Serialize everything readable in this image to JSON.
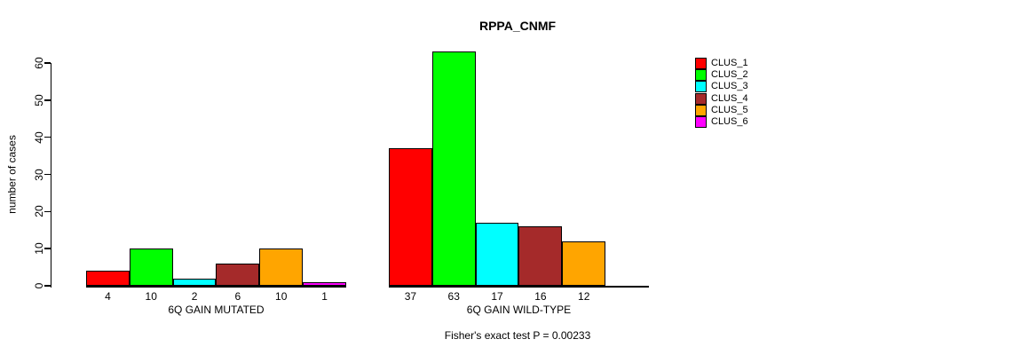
{
  "chart_data": {
    "type": "bar",
    "title": "RPPA_CNMF",
    "ylabel": "number of cases",
    "ylim": [
      0,
      60
    ],
    "yticks": [
      0,
      10,
      20,
      30,
      40,
      50,
      60
    ],
    "grid": false,
    "legend_position": "top-right",
    "annotation": "Fisher's exact test P = 0.00233",
    "series": [
      {
        "name": "CLUS_1",
        "color": "#FF0000"
      },
      {
        "name": "CLUS_2",
        "color": "#00FF00"
      },
      {
        "name": "CLUS_3",
        "color": "#00FFFF"
      },
      {
        "name": "CLUS_4",
        "color": "#A52A2A"
      },
      {
        "name": "CLUS_5",
        "color": "#FFA500"
      },
      {
        "name": "CLUS_6",
        "color": "#FF00FF"
      }
    ],
    "groups": [
      {
        "label": "6Q GAIN MUTATED",
        "values": [
          4,
          10,
          2,
          6,
          10,
          1
        ],
        "bar_labels": [
          "4",
          "10",
          "2",
          "6",
          "10",
          "1"
        ]
      },
      {
        "label": "6Q GAIN WILD-TYPE",
        "values": [
          37,
          63,
          17,
          16,
          12,
          0
        ],
        "bar_labels": [
          "37",
          "63",
          "17",
          "16",
          "12",
          ""
        ]
      }
    ]
  }
}
